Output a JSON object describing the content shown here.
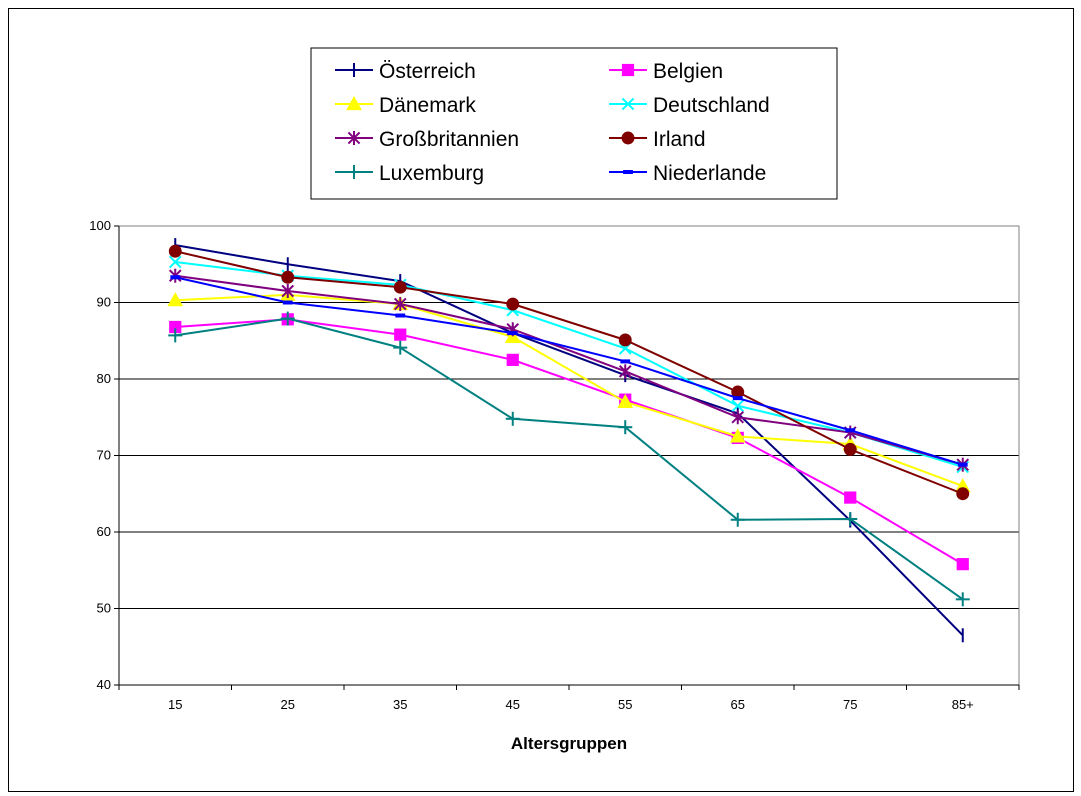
{
  "chart_data": {
    "type": "line",
    "title": "",
    "xlabel": "Altersgruppen",
    "ylabel": "",
    "categories": [
      "15",
      "25",
      "35",
      "45",
      "55",
      "65",
      "75",
      "85+"
    ],
    "ylim": [
      40,
      100
    ],
    "yticks": [
      40,
      50,
      60,
      70,
      80,
      90,
      100
    ],
    "grid": "horizontal",
    "legend": "top",
    "series": [
      {
        "name": "Österreich",
        "color": "#000080",
        "marker": "vbar",
        "values": [
          97.5,
          95.0,
          92.8,
          86.0,
          80.5,
          75.5,
          61.5,
          46.5
        ]
      },
      {
        "name": "Belgien",
        "color": "#ff00ff",
        "marker": "square",
        "values": [
          86.8,
          87.8,
          85.8,
          82.5,
          77.3,
          72.3,
          64.5,
          55.8
        ]
      },
      {
        "name": "Dänemark",
        "color": "#ffff00",
        "marker": "triangle",
        "values": [
          90.3,
          91.0,
          89.8,
          85.5,
          77.0,
          72.5,
          71.5,
          66.0
        ]
      },
      {
        "name": "Deutschland",
        "color": "#00ffff",
        "marker": "x",
        "values": [
          95.3,
          93.5,
          92.3,
          89.0,
          84.0,
          76.5,
          73.0,
          68.5
        ]
      },
      {
        "name": "Großbritannien",
        "color": "#800080",
        "marker": "star",
        "values": [
          93.5,
          91.5,
          89.8,
          86.5,
          81.0,
          75.0,
          73.0,
          68.8
        ]
      },
      {
        "name": "Irland",
        "color": "#800000",
        "marker": "circle",
        "values": [
          96.7,
          93.3,
          92.0,
          89.8,
          85.1,
          78.3,
          70.8,
          65.0
        ]
      },
      {
        "name": "Luxemburg",
        "color": "#008080",
        "marker": "plus",
        "values": [
          85.7,
          87.9,
          84.1,
          74.8,
          73.7,
          61.6,
          61.7,
          51.2
        ]
      },
      {
        "name": "Niederlande",
        "color": "#0000ff",
        "marker": "dash",
        "values": [
          93.3,
          90.0,
          88.3,
          86.0,
          82.3,
          77.5,
          73.3,
          68.8
        ]
      }
    ]
  }
}
